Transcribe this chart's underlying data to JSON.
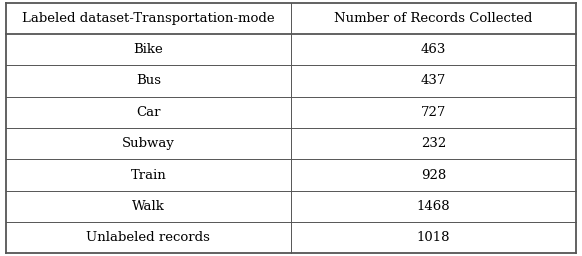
{
  "col1_header": "Labeled dataset-Transportation-mode",
  "col2_header": "Number of Records Collected",
  "rows": [
    [
      "Bike",
      "463"
    ],
    [
      "Bus",
      "437"
    ],
    [
      "Car",
      "727"
    ],
    [
      "Subway",
      "232"
    ],
    [
      "Train",
      "928"
    ],
    [
      "Walk",
      "1468"
    ],
    [
      "Unlabeled records",
      "1018"
    ]
  ],
  "background_color": "#ffffff",
  "line_color": "#555555",
  "text_color": "#000000",
  "header_fontsize": 9.5,
  "cell_fontsize": 9.5,
  "col_split": 0.5,
  "fig_width": 5.82,
  "fig_height": 2.56,
  "dpi": 100
}
